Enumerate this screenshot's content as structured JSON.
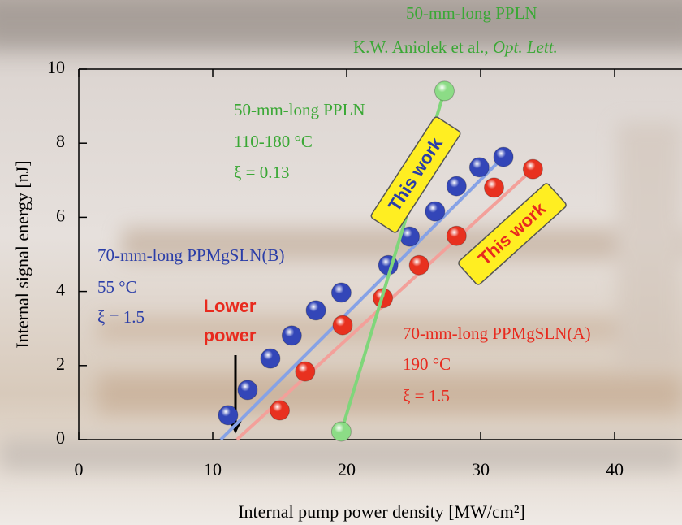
{
  "chart_data": {
    "type": "scatter",
    "xlabel": "Internal pump power density [MW/cm²]",
    "ylabel": "Internal signal energy [nJ]",
    "xlim": [
      0,
      45
    ],
    "ylim": [
      0,
      10
    ],
    "xticks": [
      0,
      10,
      20,
      30,
      40
    ],
    "yticks": [
      0,
      2,
      4,
      6,
      8,
      10
    ],
    "series": [
      {
        "color": "#3346b8",
        "line_color": "#86a2e6",
        "x": [
          11.15,
          12.6,
          14.3,
          15.9,
          17.7,
          19.6,
          23.1,
          24.7,
          26.6,
          28.2,
          29.9,
          31.7
        ],
        "values": [
          0.66,
          1.34,
          2.19,
          2.81,
          3.49,
          3.97,
          4.71,
          5.48,
          6.16,
          6.84,
          7.35,
          7.63
        ],
        "fit": {
          "x": [
            10.6,
            31.7
          ],
          "values": [
            0,
            7.63
          ]
        }
      },
      {
        "color": "#e8311f",
        "line_color": "#f3a09a",
        "x": [
          15.0,
          16.9,
          19.7,
          22.7,
          25.4,
          28.2,
          31.0,
          33.9
        ],
        "values": [
          0.79,
          1.84,
          3.09,
          3.82,
          4.71,
          5.5,
          6.8,
          7.3
        ],
        "fit": {
          "x": [
            11.8,
            33.9
          ],
          "values": [
            0,
            7.3
          ]
        }
      },
      {
        "color": "#8cdc86",
        "line_color": "#7fd67a",
        "x": [
          19.6,
          27.3
        ],
        "values": [
          0.22,
          9.41
        ],
        "fit": {
          "x": [
            19.6,
            27.3
          ],
          "values": [
            0.22,
            9.41
          ]
        }
      }
    ],
    "annotations": {
      "reference": {
        "name": "50-mm-long PPLN",
        "authors": "K.W. Aniolek et al.,",
        "journal": "Opt. Lett."
      },
      "green": [
        "50-mm-long PPLN",
        "110-180 °C",
        "ξ = 0.13"
      ],
      "blue": [
        "70-mm-long PPMgSLN(B)",
        "55 °C",
        "ξ = 1.5"
      ],
      "red": [
        "70-mm-long PPMgSLN(A)",
        "190 °C",
        "ξ = 1.5"
      ],
      "this_work_blue": "This work",
      "this_work_red": "This work",
      "lower_power": [
        "Lower",
        "power"
      ]
    }
  }
}
